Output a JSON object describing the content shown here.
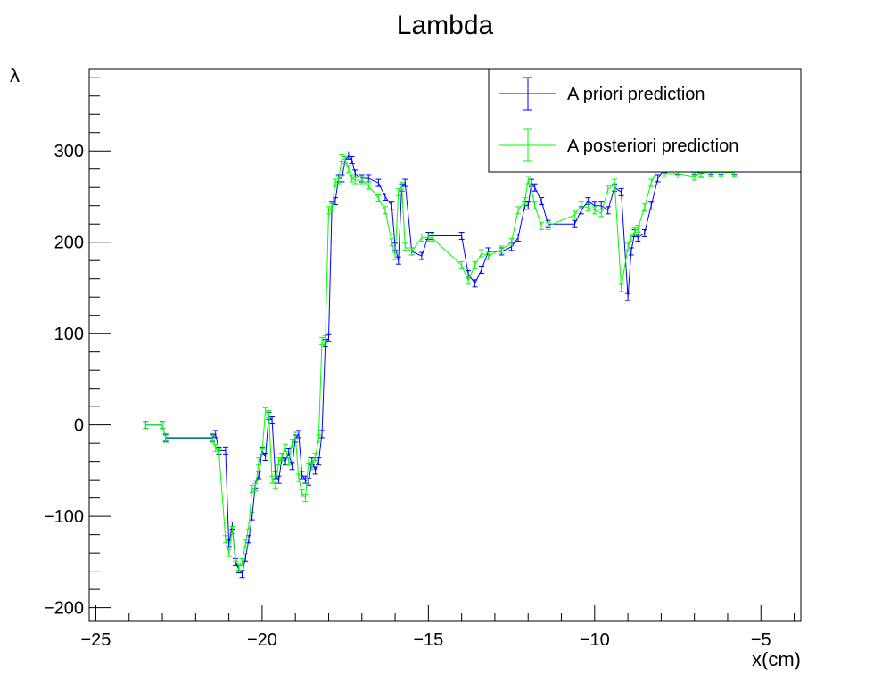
{
  "chart_data": {
    "type": "line",
    "title": "Lambda",
    "xlabel": "x(cm)",
    "ylabel": "λ",
    "xlim": [
      -25.2,
      -3.8
    ],
    "ylim": [
      -215,
      390
    ],
    "x_ticks": [
      -25,
      -20,
      -15,
      -10,
      -5
    ],
    "x_tick_labels": [
      "−25",
      "−20",
      "−15",
      "−10",
      "−5"
    ],
    "y_ticks": [
      -200,
      -100,
      0,
      100,
      200,
      300
    ],
    "y_tick_labels": [
      "−200",
      "−100",
      "0",
      "100",
      "200",
      "300"
    ],
    "grid": false,
    "legend_position": "top-right",
    "series": [
      {
        "name": "A priori prediction",
        "color": "#0000ff",
        "x": [
          -23.5,
          -23.0,
          -22.9,
          -21.5,
          -21.4,
          -21.3,
          -21.1,
          -21.0,
          -20.9,
          -20.8,
          -20.7,
          -20.6,
          -20.5,
          -20.4,
          -20.3,
          -20.2,
          -20.1,
          -20.0,
          -19.9,
          -19.8,
          -19.7,
          -19.6,
          -19.5,
          -19.4,
          -19.3,
          -19.2,
          -19.1,
          -19.0,
          -18.9,
          -18.8,
          -18.7,
          -18.6,
          -18.5,
          -18.4,
          -18.3,
          -18.2,
          -18.1,
          -18.0,
          -17.9,
          -17.8,
          -17.7,
          -17.6,
          -17.5,
          -17.4,
          -17.3,
          -17.2,
          -17.0,
          -16.8,
          -16.5,
          -16.3,
          -16.1,
          -16.0,
          -15.9,
          -15.8,
          -15.7,
          -15.5,
          -15.2,
          -15.0,
          -14.9,
          -14.0,
          -13.8,
          -13.6,
          -13.4,
          -13.2,
          -12.8,
          -12.5,
          -12.3,
          -12.1,
          -12.0,
          -11.9,
          -11.8,
          -11.6,
          -11.4,
          -10.6,
          -10.4,
          -10.2,
          -10.0,
          -9.8,
          -9.6,
          -9.4,
          -9.2,
          -9.0,
          -8.9,
          -8.8,
          -8.7,
          -8.5,
          -8.3,
          -8.1,
          -7.9,
          -7.5,
          -7.0,
          -6.8,
          -6.5,
          -6.2,
          -5.8
        ],
        "values": [
          0,
          0,
          -14,
          -14,
          -10,
          -28,
          -28,
          -130,
          -110,
          -150,
          -158,
          -163,
          -145,
          -125,
          -100,
          -65,
          -55,
          -28,
          -35,
          10,
          5,
          -55,
          -60,
          -35,
          -40,
          -30,
          -45,
          -15,
          -10,
          -55,
          -60,
          -62,
          -40,
          -50,
          -40,
          -10,
          90,
          95,
          240,
          245,
          270,
          270,
          290,
          295,
          290,
          275,
          270,
          270,
          265,
          250,
          240,
          195,
          180,
          260,
          265,
          190,
          185,
          207,
          207,
          207,
          165,
          155,
          170,
          190,
          190,
          195,
          205,
          240,
          240,
          265,
          260,
          245,
          220,
          220,
          235,
          245,
          240,
          240,
          235,
          260,
          255,
          140,
          190,
          210,
          205,
          210,
          240,
          270,
          280,
          278,
          278,
          275,
          278,
          278,
          278
        ]
      },
      {
        "name": "A posteriori prediction",
        "color": "#00ff00",
        "x": [
          -23.5,
          -23.0,
          -22.9,
          -21.5,
          -21.4,
          -21.3,
          -21.1,
          -21.0,
          -20.9,
          -20.8,
          -20.7,
          -20.6,
          -20.5,
          -20.4,
          -20.3,
          -20.2,
          -20.1,
          -20.0,
          -19.9,
          -19.8,
          -19.7,
          -19.6,
          -19.5,
          -19.4,
          -19.3,
          -19.2,
          -19.1,
          -19.0,
          -18.9,
          -18.8,
          -18.7,
          -18.6,
          -18.5,
          -18.4,
          -18.3,
          -18.2,
          -18.1,
          -18.0,
          -17.9,
          -17.8,
          -17.7,
          -17.6,
          -17.5,
          -17.4,
          -17.3,
          -17.2,
          -17.0,
          -16.8,
          -16.5,
          -16.3,
          -16.1,
          -16.0,
          -15.9,
          -15.8,
          -15.7,
          -15.5,
          -15.2,
          -15.0,
          -14.9,
          -14.0,
          -13.8,
          -13.6,
          -13.4,
          -13.2,
          -12.8,
          -12.5,
          -12.3,
          -12.1,
          -12.0,
          -11.9,
          -11.8,
          -11.6,
          -11.4,
          -10.6,
          -10.4,
          -10.2,
          -10.0,
          -9.8,
          -9.6,
          -9.4,
          -9.2,
          -9.0,
          -8.9,
          -8.8,
          -8.7,
          -8.5,
          -8.3,
          -8.1,
          -7.9,
          -7.5,
          -7.0,
          -6.8,
          -6.5,
          -6.2,
          -5.8
        ],
        "values": [
          0,
          0,
          -15,
          -15,
          -25,
          -30,
          -125,
          -140,
          -115,
          -145,
          -155,
          -150,
          -130,
          -110,
          -70,
          -68,
          -40,
          -30,
          15,
          12,
          -60,
          -65,
          -40,
          -35,
          -25,
          -40,
          -20,
          -12,
          -58,
          -75,
          -80,
          -38,
          -45,
          -35,
          -15,
          92,
          94,
          235,
          238,
          265,
          268,
          292,
          290,
          280,
          270,
          268,
          268,
          262,
          248,
          235,
          200,
          185,
          255,
          262,
          195,
          190,
          205,
          205,
          205,
          175,
          158,
          175,
          188,
          185,
          192,
          200,
          235,
          245,
          268,
          258,
          240,
          218,
          218,
          230,
          240,
          238,
          235,
          232,
          258,
          265,
          150,
          195,
          205,
          212,
          215,
          238,
          265,
          282,
          275,
          275,
          272,
          276,
          276,
          276,
          276
        ]
      }
    ]
  }
}
